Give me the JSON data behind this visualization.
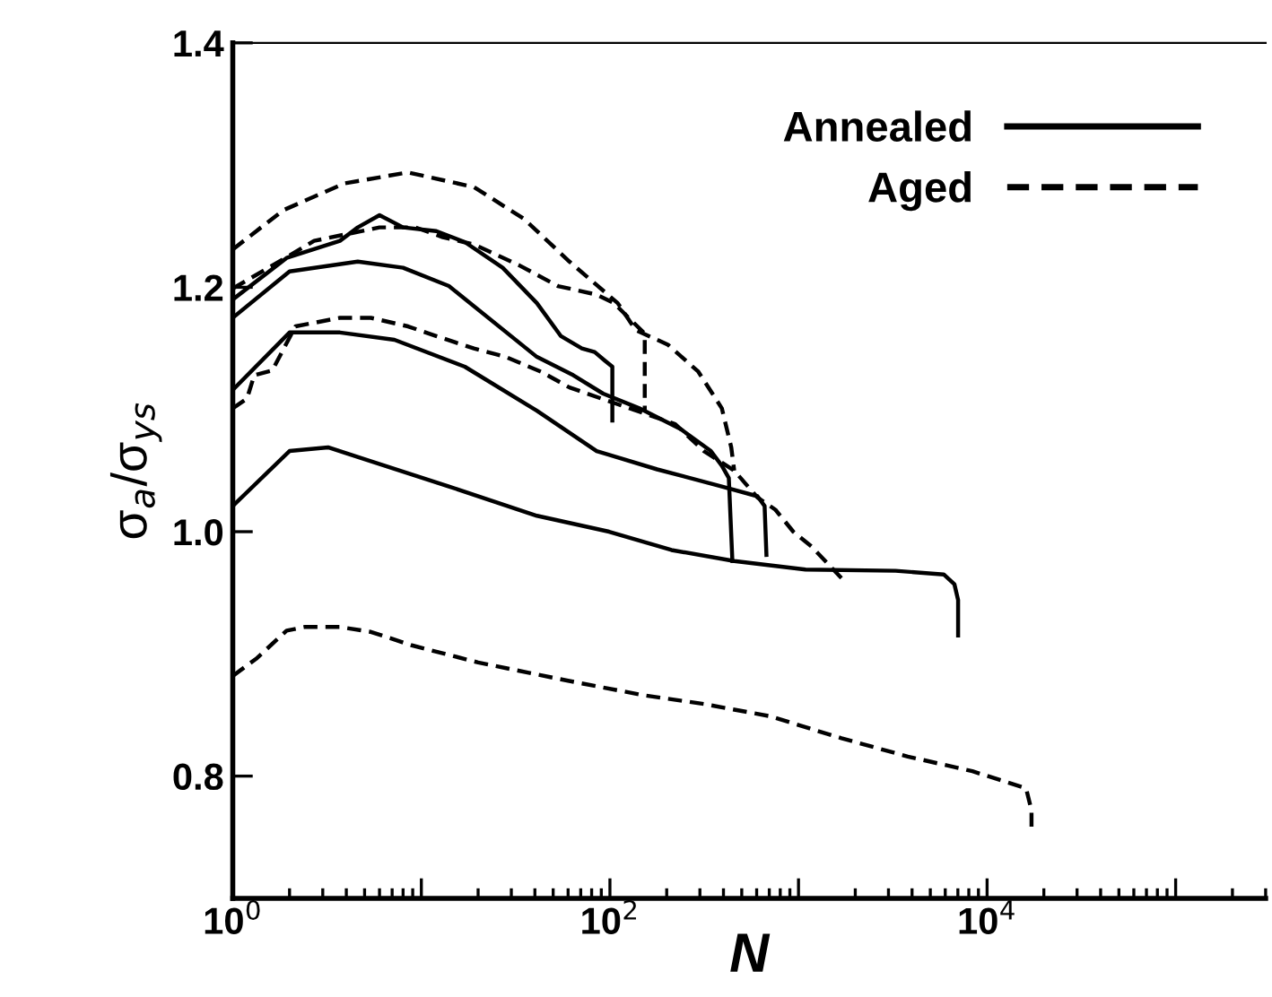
{
  "chart_data": {
    "type": "line",
    "xlabel": "N",
    "ylabel": "σ$_{a}$/σ$_{ys}$",
    "log": "x",
    "grid": false,
    "legend": "top right",
    "xlim": [
      1,
      300000
    ],
    "ylim": [
      0.7,
      1.4
    ],
    "xticks": [
      {
        "value": 1,
        "label": "10$^{0}$"
      },
      {
        "value": 10,
        "label": null
      },
      {
        "value": 100,
        "label": "10$^{2}$"
      },
      {
        "value": 1000,
        "label": null
      },
      {
        "value": 10000,
        "label": "10$^{4}$"
      },
      {
        "value": 100000,
        "label": null
      }
    ],
    "yticks": [
      0.8,
      {
        "value": 1.0,
        "label": "1.0"
      },
      1.2,
      1.4
    ],
    "series": [
      {
        "name": "Annealed",
        "color": "#000000",
        "line_style": "solid",
        "x": [
          1,
          2.0,
          3.2,
          14,
          41,
          99,
          212,
          456,
          1090,
          3270,
          5890,
          6710,
          7020,
          7020
        ],
        "values": [
          1.021,
          1.066,
          1.069,
          1.037,
          1.013,
          1.0,
          0.985,
          0.976,
          0.969,
          0.968,
          0.965,
          0.957,
          0.944,
          0.915
        ]
      },
      {
        "color": "#000000",
        "line_style": "solid",
        "x": [
          1,
          2.0,
          3.7,
          7.2,
          17,
          41,
          85,
          178,
          392,
          606,
          661,
          676
        ],
        "values": [
          1.116,
          1.163,
          1.163,
          1.157,
          1.135,
          1.099,
          1.066,
          1.051,
          1.037,
          1.029,
          1.021,
          0.981
        ]
      },
      {
        "color": "#000000",
        "line_style": "solid",
        "x": [
          1,
          2.0,
          4.6,
          8.0,
          14,
          41,
          64,
          92,
          143,
          237,
          343,
          392,
          427,
          446
        ],
        "values": [
          1.175,
          1.213,
          1.221,
          1.216,
          1.201,
          1.143,
          1.128,
          1.113,
          1.101,
          1.084,
          1.066,
          1.054,
          1.044,
          0.976
        ]
      },
      {
        "color": "#000000",
        "line_style": "solid",
        "x": [
          1,
          1.93,
          3.7,
          4.6,
          6.0,
          8.0,
          12,
          17,
          27,
          41,
          55,
          71,
          83,
          94,
          103,
          103
        ],
        "values": [
          1.19,
          1.224,
          1.238,
          1.249,
          1.259,
          1.249,
          1.246,
          1.237,
          1.216,
          1.187,
          1.16,
          1.15,
          1.147,
          1.14,
          1.135,
          1.091
        ]
      },
      {
        "name": "Aged",
        "color": "#000000",
        "line_style": "dashed",
        "x": [
          1,
          1.85,
          3.9,
          8.5,
          19,
          35,
          61,
          110,
          137,
          203,
          294,
          392,
          440,
          456
        ],
        "values": [
          1.231,
          1.263,
          1.285,
          1.294,
          1.282,
          1.256,
          1.221,
          1.187,
          1.165,
          1.153,
          1.131,
          1.101,
          1.069,
          1.05
        ]
      },
      {
        "color": "#000000",
        "line_style": "dashed",
        "x": [
          1,
          1.55,
          2.7,
          6.0,
          9.3,
          13,
          19,
          33,
          53,
          85,
          105,
          153,
          153
        ],
        "values": [
          1.199,
          1.216,
          1.238,
          1.249,
          1.249,
          1.241,
          1.235,
          1.218,
          1.201,
          1.194,
          1.187,
          1.162,
          1.099
        ]
      },
      {
        "color": "#000000",
        "line_style": "dashed",
        "x": [
          1,
          1.19,
          1.3,
          1.62,
          2.15,
          3.7,
          5.4,
          8.5,
          12,
          19,
          28,
          43,
          61,
          222,
          315,
          456,
          606,
          754,
          938,
          1170,
          1690
        ],
        "values": [
          1.101,
          1.109,
          1.128,
          1.132,
          1.168,
          1.175,
          1.175,
          1.168,
          1.16,
          1.15,
          1.143,
          1.131,
          1.118,
          1.088,
          1.066,
          1.05,
          1.028,
          1.018,
          1.0,
          0.988,
          0.962
        ]
      },
      {
        "color": "#000000",
        "line_style": "dashed",
        "x": [
          1,
          1.33,
          1.93,
          2.4,
          3.7,
          5.4,
          8.9,
          20,
          60,
          153,
          315,
          706,
          1690,
          3800,
          8360,
          16100,
          17200,
          17200
        ],
        "values": [
          0.882,
          0.896,
          0.919,
          0.922,
          0.922,
          0.918,
          0.907,
          0.893,
          0.878,
          0.866,
          0.859,
          0.849,
          0.831,
          0.816,
          0.804,
          0.79,
          0.772,
          0.757
        ]
      }
    ]
  }
}
